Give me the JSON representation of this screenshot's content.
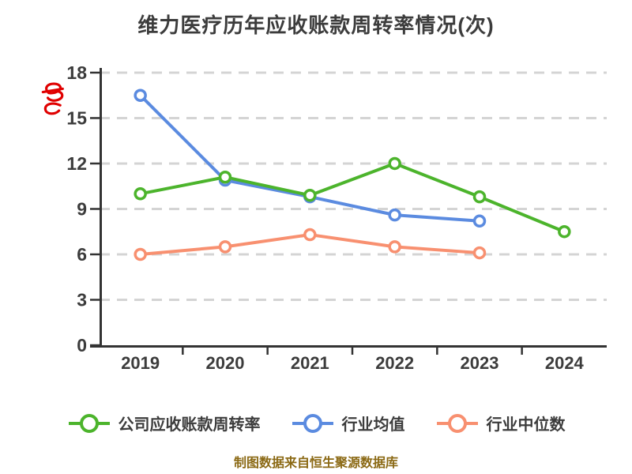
{
  "title": "维力医疗历年应收账款周转率情况(次)",
  "watermark": {
    "name": "red-scribble-logo",
    "color": "#e00000"
  },
  "footer": {
    "text": "制图数据来自恒生聚源数据库",
    "color": "#8B6914"
  },
  "chart_data": {
    "type": "line",
    "title": "维力医疗历年应收账款周转率情况(次)",
    "categories": [
      "2019",
      "2020",
      "2021",
      "2022",
      "2023",
      "2024"
    ],
    "series": [
      {
        "name": "公司应收账款周转率",
        "color": "#4cb42c",
        "values": [
          10.0,
          11.1,
          9.9,
          12.0,
          9.8,
          7.5
        ]
      },
      {
        "name": "行业均值",
        "color": "#5b8be0",
        "values": [
          16.5,
          10.9,
          9.8,
          8.6,
          8.2,
          null
        ]
      },
      {
        "name": "行业中位数",
        "color": "#f89070",
        "values": [
          6.0,
          6.5,
          7.3,
          6.5,
          6.1,
          null
        ]
      }
    ],
    "xlabel": "",
    "ylabel": "",
    "y_ticks": [
      0,
      3,
      6,
      9,
      12,
      15,
      18
    ],
    "ylim": [
      0,
      18
    ],
    "grid": "horizontal dashed",
    "legend_position": "bottom",
    "marker": "circle-white-fill",
    "axis_color": "#333333",
    "grid_color": "#d4d4d4",
    "label_color": "#3c3c3c"
  }
}
